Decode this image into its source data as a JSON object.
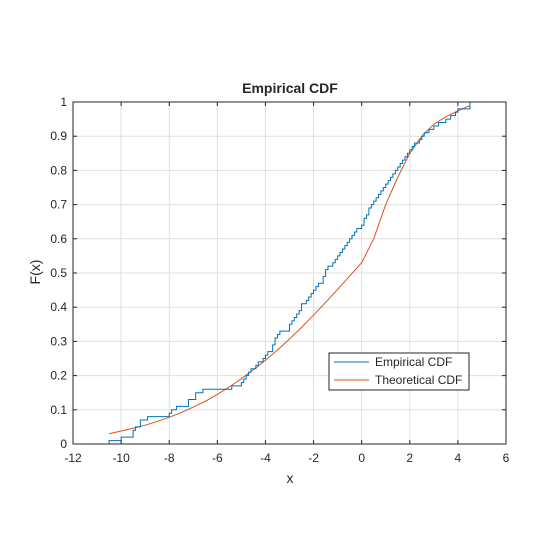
{
  "chart_data": {
    "type": "line",
    "title": "Empirical CDF",
    "xlabel": "x",
    "ylabel": "F(x)",
    "xlim": [
      -12,
      6
    ],
    "ylim": [
      0,
      1
    ],
    "xticks": [
      -12,
      -10,
      -8,
      -6,
      -4,
      -2,
      0,
      2,
      4,
      6
    ],
    "yticks": [
      0,
      0.1,
      0.2,
      0.3,
      0.4,
      0.5,
      0.6,
      0.7,
      0.8,
      0.9,
      1
    ],
    "xtick_labels": [
      "-12",
      "-10",
      "-8",
      "-6",
      "-4",
      "-2",
      "0",
      "2",
      "4",
      "6"
    ],
    "ytick_labels": [
      "0",
      "0.1",
      "0.2",
      "0.3",
      "0.4",
      "0.5",
      "0.6",
      "0.7",
      "0.8",
      "0.9",
      "1"
    ],
    "grid": true,
    "legend_position": "lower-right",
    "series": [
      {
        "name": "Empirical CDF",
        "style": "step",
        "color": "#0072BD",
        "x": [
          -10.5,
          -10.0,
          -9.5,
          -9.4,
          -9.2,
          -8.9,
          -8.8,
          -8.0,
          -7.9,
          -7.7,
          -7.2,
          -6.9,
          -6.6,
          -6.4,
          -5.4,
          -5.2,
          -5.0,
          -4.9,
          -4.8,
          -4.7,
          -4.6,
          -4.5,
          -4.4,
          -4.3,
          -4.1,
          -4.0,
          -3.9,
          -3.8,
          -3.7,
          -3.6,
          -3.5,
          -3.4,
          -3.3,
          -3.1,
          -3.0,
          -2.9,
          -2.8,
          -2.7,
          -2.6,
          -2.5,
          -2.3,
          -2.2,
          -2.1,
          -2.0,
          -1.9,
          -1.8,
          -1.6,
          -1.5,
          -1.4,
          -1.3,
          -1.2,
          -1.1,
          -1.0,
          -0.9,
          -0.8,
          -0.7,
          -0.6,
          -0.5,
          -0.4,
          -0.3,
          -0.2,
          -0.1,
          0.0,
          0.1,
          0.2,
          0.3,
          0.4,
          0.5,
          0.6,
          0.7,
          0.8,
          0.9,
          1.0,
          1.1,
          1.2,
          1.3,
          1.4,
          1.5,
          1.6,
          1.7,
          1.8,
          1.9,
          2.0,
          2.1,
          2.2,
          2.3,
          2.4,
          2.5,
          2.6,
          2.7,
          2.8,
          2.9,
          3.0,
          3.1,
          3.2,
          3.3,
          3.5,
          3.6,
          3.7,
          3.8,
          3.9,
          4.0,
          4.1,
          4.5
        ],
        "y": [
          0.01,
          0.02,
          0.04,
          0.05,
          0.07,
          0.08,
          0.08,
          0.09,
          0.1,
          0.11,
          0.13,
          0.15,
          0.16,
          0.16,
          0.17,
          0.17,
          0.18,
          0.19,
          0.2,
          0.21,
          0.22,
          0.22,
          0.23,
          0.24,
          0.25,
          0.26,
          0.27,
          0.27,
          0.29,
          0.31,
          0.32,
          0.33,
          0.33,
          0.33,
          0.35,
          0.36,
          0.37,
          0.38,
          0.39,
          0.41,
          0.42,
          0.43,
          0.44,
          0.45,
          0.46,
          0.47,
          0.49,
          0.51,
          0.52,
          0.52,
          0.53,
          0.54,
          0.55,
          0.56,
          0.57,
          0.58,
          0.59,
          0.6,
          0.61,
          0.62,
          0.63,
          0.63,
          0.64,
          0.66,
          0.67,
          0.69,
          0.7,
          0.71,
          0.72,
          0.73,
          0.74,
          0.75,
          0.76,
          0.77,
          0.78,
          0.79,
          0.8,
          0.81,
          0.82,
          0.83,
          0.84,
          0.85,
          0.86,
          0.87,
          0.88,
          0.88,
          0.89,
          0.9,
          0.91,
          0.91,
          0.92,
          0.92,
          0.93,
          0.93,
          0.94,
          0.94,
          0.95,
          0.95,
          0.96,
          0.96,
          0.97,
          0.98,
          0.98,
          1.0
        ]
      },
      {
        "name": "Theoretical CDF",
        "style": "line",
        "color": "#D95319",
        "x": [
          -10.5,
          -10,
          -9.5,
          -9,
          -8.5,
          -8,
          -7.5,
          -7,
          -6.5,
          -6,
          -5.5,
          -5,
          -4.5,
          -4,
          -3.5,
          -3,
          -2.5,
          -2,
          -1.5,
          -1,
          -0.5,
          0,
          0.5,
          1,
          1.5,
          2,
          2.5,
          3,
          3.5,
          4,
          4.5
        ],
        "y": [
          0.03,
          0.038,
          0.046,
          0.055,
          0.066,
          0.078,
          0.092,
          0.108,
          0.125,
          0.145,
          0.167,
          0.191,
          0.217,
          0.245,
          0.275,
          0.307,
          0.341,
          0.377,
          0.414,
          0.452,
          0.491,
          0.53,
          0.6,
          0.7,
          0.78,
          0.85,
          0.9,
          0.935,
          0.957,
          0.974,
          0.99
        ]
      }
    ],
    "colors": {
      "axes": "#262626",
      "grid": "#dfdfdf",
      "background": "#ffffff"
    }
  }
}
